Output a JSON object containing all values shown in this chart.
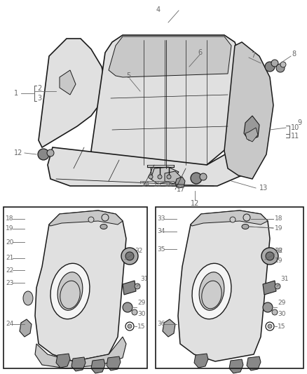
{
  "bg_color": "#ffffff",
  "lc": "#1a1a1a",
  "gray1": "#c8c8c8",
  "gray2": "#e0e0e0",
  "gray3": "#a8a8a8",
  "label_color": "#666666",
  "fig_width": 4.38,
  "fig_height": 5.33,
  "dpi": 100
}
